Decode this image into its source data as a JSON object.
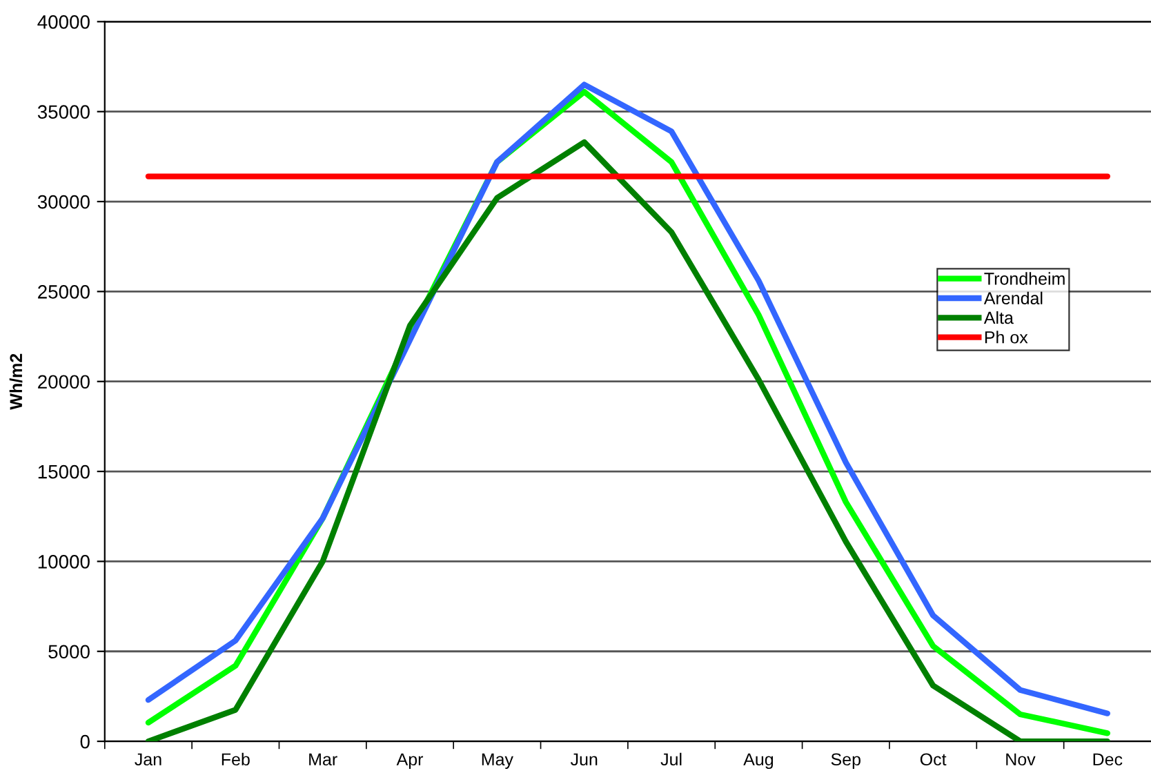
{
  "chart_data": {
    "type": "line",
    "ylabel": "Wh/m2",
    "categories": [
      "Jan",
      "Feb",
      "Mar",
      "Apr",
      "May",
      "Jun",
      "Jul",
      "Aug",
      "Sep",
      "Oct",
      "Nov",
      "Dec"
    ],
    "series": [
      {
        "name": "Trondheim",
        "color": "#00ff00",
        "values": [
          1040,
          4200,
          12400,
          22600,
          32200,
          36100,
          32200,
          23700,
          13300,
          5300,
          1500,
          450
        ]
      },
      {
        "name": "Arendal",
        "color": "#3366ff",
        "values": [
          2300,
          5600,
          12400,
          22300,
          32200,
          36500,
          33900,
          25600,
          15500,
          7000,
          2850,
          1550
        ]
      },
      {
        "name": "Alta",
        "color": "#008000",
        "values": [
          0,
          1750,
          10000,
          23100,
          30200,
          33300,
          28300,
          20100,
          11100,
          3100,
          0,
          0
        ]
      },
      {
        "name": "Ph ox",
        "color": "#ff0000",
        "values": [
          31400,
          31400,
          31400,
          31400,
          31400,
          31400,
          31400,
          31400,
          31400,
          31400,
          31400,
          31400
        ]
      }
    ],
    "ylim": [
      0,
      40000
    ],
    "yticks": [
      0,
      5000,
      10000,
      15000,
      20000,
      25000,
      30000,
      35000,
      40000
    ],
    "grid": "y",
    "legend": "right",
    "marker": "none",
    "line_style": "solid"
  }
}
